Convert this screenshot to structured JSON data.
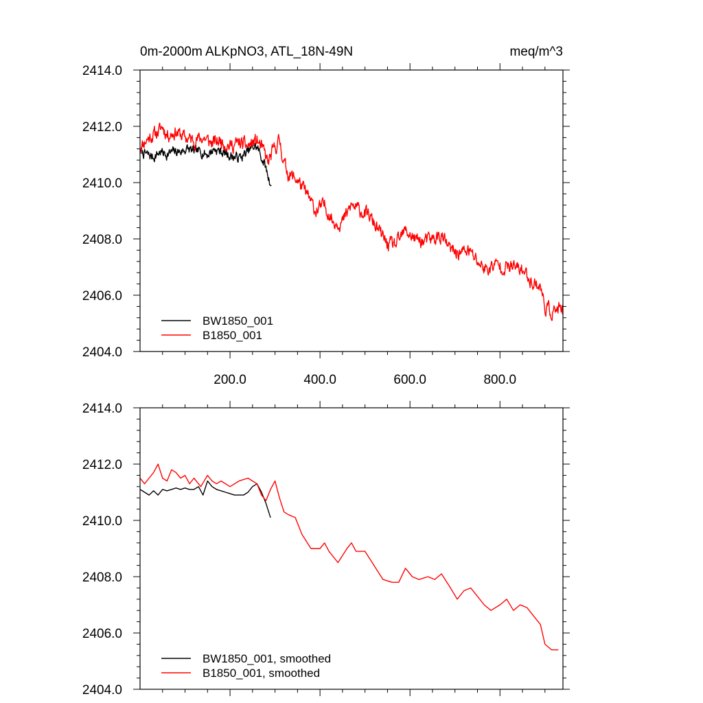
{
  "chart_data": [
    {
      "type": "line",
      "title_left": "0m-2000m ALKpNO3, ATL_18N-49N",
      "title_right": "meq/m^3",
      "xlim": [
        0,
        940
      ],
      "ylim": [
        2404,
        2414
      ],
      "x_ticks": [
        200,
        400,
        600,
        800
      ],
      "x_tick_labels": [
        "200.0",
        "400.0",
        "600.0",
        "800.0"
      ],
      "y_ticks": [
        2404,
        2406,
        2408,
        2410,
        2412,
        2414
      ],
      "y_tick_labels": [
        "2404.0",
        "2406.0",
        "2408.0",
        "2410.0",
        "2412.0",
        "2414.0"
      ],
      "legend_position": "bottom-left",
      "series": [
        {
          "name": "BW1850_001",
          "color": "#000000",
          "noise": 0.18,
          "seed": 7,
          "x": [
            0,
            15,
            30,
            45,
            60,
            75,
            90,
            105,
            120,
            135,
            150,
            165,
            180,
            195,
            210,
            225,
            240,
            255,
            262,
            270,
            278,
            285,
            292
          ],
          "y": [
            2411.1,
            2411.0,
            2410.9,
            2411.1,
            2411.0,
            2411.1,
            2411.1,
            2411.2,
            2411.1,
            2411.1,
            2411.0,
            2411.2,
            2411.1,
            2411.0,
            2410.9,
            2410.9,
            2411.1,
            2411.3,
            2411.2,
            2410.9,
            2410.6,
            2410.2,
            2409.9
          ]
        },
        {
          "name": "B1850_001",
          "color": "#ff0000",
          "noise": 0.25,
          "seed": 11,
          "x": [
            0,
            20,
            40,
            50,
            60,
            80,
            100,
            120,
            140,
            160,
            180,
            200,
            220,
            240,
            260,
            275,
            285,
            295,
            310,
            320,
            330,
            350,
            370,
            390,
            410,
            430,
            450,
            470,
            490,
            510,
            530,
            550,
            570,
            590,
            610,
            630,
            650,
            670,
            690,
            710,
            730,
            750,
            770,
            790,
            810,
            830,
            850,
            870,
            890,
            900,
            915,
            930,
            940
          ],
          "y": [
            2411.3,
            2411.6,
            2411.8,
            2412.0,
            2411.7,
            2411.8,
            2411.6,
            2411.5,
            2411.6,
            2411.4,
            2411.5,
            2411.3,
            2411.4,
            2411.3,
            2411.5,
            2411.1,
            2410.7,
            2411.1,
            2411.5,
            2410.7,
            2410.3,
            2410.1,
            2409.6,
            2409.0,
            2409.2,
            2408.6,
            2408.6,
            2409.2,
            2409.0,
            2408.8,
            2408.3,
            2407.8,
            2407.8,
            2408.3,
            2408.0,
            2407.9,
            2408.0,
            2408.1,
            2407.6,
            2407.5,
            2407.6,
            2407.2,
            2406.9,
            2407.1,
            2407.0,
            2407.0,
            2406.9,
            2406.5,
            2406.3,
            2405.6,
            2405.4,
            2405.5,
            2405.4
          ]
        }
      ]
    },
    {
      "type": "line",
      "title_left": "",
      "title_right": "",
      "xlim": [
        0,
        940
      ],
      "ylim": [
        2404,
        2414
      ],
      "x_ticks": [
        200,
        400,
        600,
        800
      ],
      "x_tick_labels": [],
      "y_ticks": [
        2404,
        2406,
        2408,
        2410,
        2412,
        2414
      ],
      "y_tick_labels": [
        "2404.0",
        "2406.0",
        "2408.0",
        "2410.0",
        "2412.0",
        "2414.0"
      ],
      "legend_position": "bottom-left",
      "series": [
        {
          "name": "BW1850_001, smoothed",
          "color": "#000000",
          "noise": 0,
          "seed": 0,
          "x": [
            0,
            10,
            20,
            30,
            40,
            50,
            60,
            70,
            80,
            90,
            100,
            110,
            120,
            130,
            140,
            150,
            160,
            170,
            180,
            190,
            200,
            210,
            220,
            230,
            240,
            250,
            260,
            270,
            280,
            290
          ],
          "y": [
            2411.1,
            2411.0,
            2410.9,
            2411.05,
            2410.9,
            2411.1,
            2411.05,
            2411.1,
            2411.15,
            2411.1,
            2411.15,
            2411.1,
            2411.1,
            2411.2,
            2410.9,
            2411.4,
            2411.2,
            2411.1,
            2411.05,
            2411.0,
            2410.95,
            2410.9,
            2410.9,
            2410.9,
            2411.0,
            2411.2,
            2411.3,
            2411.0,
            2410.6,
            2410.1
          ]
        },
        {
          "name": "B1850_001, smoothed",
          "color": "#ff0000",
          "noise": 0,
          "seed": 0,
          "x": [
            0,
            10,
            20,
            30,
            40,
            50,
            60,
            70,
            80,
            90,
            100,
            110,
            120,
            135,
            150,
            160,
            170,
            180,
            200,
            220,
            240,
            250,
            260,
            270,
            280,
            290,
            300,
            310,
            320,
            330,
            345,
            360,
            380,
            400,
            410,
            420,
            440,
            460,
            470,
            480,
            500,
            520,
            540,
            560,
            575,
            590,
            605,
            620,
            640,
            655,
            670,
            690,
            705,
            720,
            735,
            750,
            765,
            780,
            800,
            815,
            830,
            845,
            860,
            875,
            890,
            900,
            915,
            930
          ],
          "y": [
            2411.5,
            2411.3,
            2411.5,
            2411.7,
            2412.0,
            2411.5,
            2411.4,
            2411.8,
            2411.7,
            2411.5,
            2411.6,
            2411.3,
            2411.5,
            2411.2,
            2411.6,
            2411.4,
            2411.3,
            2411.4,
            2411.2,
            2411.4,
            2411.5,
            2411.4,
            2411.3,
            2410.9,
            2410.7,
            2411.1,
            2411.4,
            2410.8,
            2410.3,
            2410.2,
            2410.1,
            2409.5,
            2409.0,
            2409.0,
            2409.2,
            2408.9,
            2408.5,
            2409.0,
            2409.2,
            2408.9,
            2408.9,
            2408.4,
            2407.9,
            2407.8,
            2407.8,
            2408.3,
            2408.0,
            2407.9,
            2408.0,
            2407.9,
            2408.1,
            2407.6,
            2407.2,
            2407.5,
            2407.6,
            2407.3,
            2407.0,
            2406.8,
            2407.0,
            2407.2,
            2406.8,
            2407.0,
            2406.9,
            2406.6,
            2406.3,
            2405.6,
            2405.4,
            2405.4
          ]
        }
      ]
    }
  ]
}
